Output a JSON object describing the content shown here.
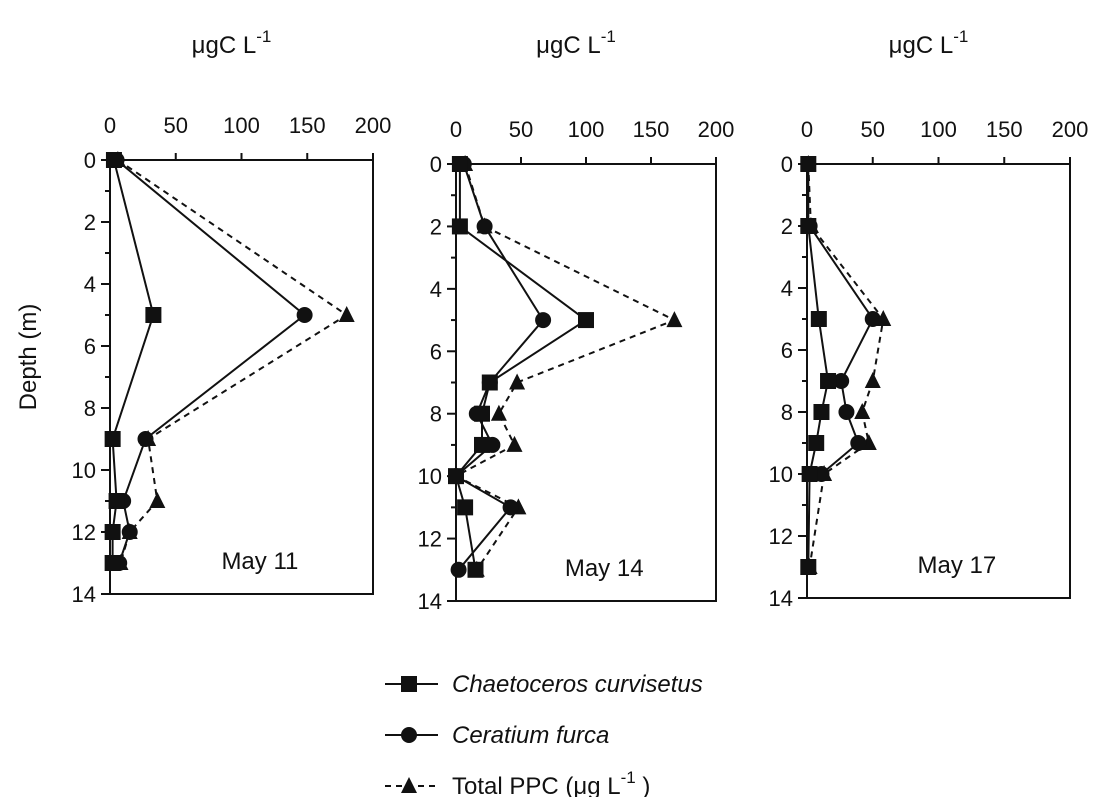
{
  "chart_data": [
    {
      "type": "line",
      "panel_label": "May 11",
      "x_axis_label": "μgC L",
      "x_axis_label_exponent": "-1",
      "ylabel": "Depth (m)",
      "xlim": [
        0,
        200
      ],
      "ylim": [
        14,
        0
      ],
      "x_ticks": [
        0,
        50,
        100,
        150,
        200
      ],
      "y_ticks": [
        0,
        2,
        4,
        6,
        8,
        10,
        12,
        14
      ],
      "x_axis_position": "top",
      "y_axis_inverted": true,
      "grid": false,
      "series": [
        {
          "name": "Chaetoceros curvisetus",
          "marker": "square",
          "line": "solid",
          "points": [
            {
              "x": 3,
              "y": 0
            },
            {
              "x": 33,
              "y": 5
            },
            {
              "x": 2,
              "y": 9
            },
            {
              "x": 5,
              "y": 11
            },
            {
              "x": 2,
              "y": 12
            },
            {
              "x": 2,
              "y": 13
            }
          ]
        },
        {
          "name": "Ceratium furca",
          "marker": "circle",
          "line": "solid",
          "points": [
            {
              "x": 5,
              "y": 0
            },
            {
              "x": 148,
              "y": 5
            },
            {
              "x": 27,
              "y": 9
            },
            {
              "x": 10,
              "y": 11
            },
            {
              "x": 15,
              "y": 12
            },
            {
              "x": 7,
              "y": 13
            }
          ]
        },
        {
          "name": "Total PPC (μg L",
          "marker": "triangle",
          "line": "dashed",
          "points": [
            {
              "x": 6,
              "y": 0
            },
            {
              "x": 180,
              "y": 5
            },
            {
              "x": 29,
              "y": 9
            },
            {
              "x": 36,
              "y": 11
            },
            {
              "x": 15,
              "y": 12
            },
            {
              "x": 8,
              "y": 13
            }
          ]
        }
      ]
    },
    {
      "type": "line",
      "panel_label": "May 14",
      "x_axis_label": "μgC L",
      "x_axis_label_exponent": "-1",
      "ylabel": "",
      "xlim": [
        0,
        200
      ],
      "ylim": [
        14,
        0
      ],
      "x_ticks": [
        0,
        50,
        100,
        150,
        200
      ],
      "y_ticks": [
        0,
        2,
        4,
        6,
        8,
        10,
        12,
        14
      ],
      "x_axis_position": "top",
      "y_axis_inverted": true,
      "grid": false,
      "series": [
        {
          "name": "Chaetoceros curvisetus",
          "marker": "square",
          "line": "solid",
          "points": [
            {
              "x": 3,
              "y": 0
            },
            {
              "x": 3,
              "y": 2
            },
            {
              "x": 100,
              "y": 5
            },
            {
              "x": 26,
              "y": 7
            },
            {
              "x": 20,
              "y": 8
            },
            {
              "x": 20,
              "y": 9
            },
            {
              "x": 0,
              "y": 10
            },
            {
              "x": 7,
              "y": 11
            },
            {
              "x": 15,
              "y": 13
            }
          ]
        },
        {
          "name": "Ceratium furca",
          "marker": "circle",
          "line": "solid",
          "points": [
            {
              "x": 6,
              "y": 0
            },
            {
              "x": 22,
              "y": 2
            },
            {
              "x": 67,
              "y": 5
            },
            {
              "x": 26,
              "y": 7
            },
            {
              "x": 16,
              "y": 8
            },
            {
              "x": 28,
              "y": 9
            },
            {
              "x": 0,
              "y": 10
            },
            {
              "x": 42,
              "y": 11
            },
            {
              "x": 2,
              "y": 13
            }
          ]
        },
        {
          "name": "Total PPC (μg L",
          "marker": "triangle",
          "line": "dashed",
          "points": [
            {
              "x": 7,
              "y": 0
            },
            {
              "x": 22,
              "y": 2
            },
            {
              "x": 168,
              "y": 5
            },
            {
              "x": 47,
              "y": 7
            },
            {
              "x": 33,
              "y": 8
            },
            {
              "x": 45,
              "y": 9
            },
            {
              "x": 0,
              "y": 10
            },
            {
              "x": 48,
              "y": 11
            },
            {
              "x": 16,
              "y": 13
            }
          ]
        }
      ]
    },
    {
      "type": "line",
      "panel_label": "May 17",
      "x_axis_label": "μgC L",
      "x_axis_label_exponent": "-1",
      "ylabel": "",
      "xlim": [
        0,
        200
      ],
      "ylim": [
        14,
        0
      ],
      "x_ticks": [
        0,
        50,
        100,
        150,
        200
      ],
      "y_ticks": [
        0,
        2,
        4,
        6,
        8,
        10,
        12,
        14
      ],
      "x_axis_position": "top",
      "y_axis_inverted": true,
      "grid": false,
      "series": [
        {
          "name": "Chaetoceros curvisetus",
          "marker": "square",
          "line": "solid",
          "points": [
            {
              "x": 1,
              "y": 0
            },
            {
              "x": 1,
              "y": 2
            },
            {
              "x": 9,
              "y": 5
            },
            {
              "x": 16,
              "y": 7
            },
            {
              "x": 11,
              "y": 8
            },
            {
              "x": 7,
              "y": 9
            },
            {
              "x": 2,
              "y": 10
            },
            {
              "x": 1,
              "y": 13
            }
          ]
        },
        {
          "name": "Ceratium furca",
          "marker": "circle",
          "line": "solid",
          "points": [
            {
              "x": 2,
              "y": 2
            },
            {
              "x": 50,
              "y": 5
            },
            {
              "x": 26,
              "y": 7
            },
            {
              "x": 30,
              "y": 8
            },
            {
              "x": 39,
              "y": 9
            },
            {
              "x": 11,
              "y": 10
            }
          ]
        },
        {
          "name": "Total PPC (μg L",
          "marker": "triangle",
          "line": "dashed",
          "points": [
            {
              "x": 1,
              "y": 0
            },
            {
              "x": 3,
              "y": 2
            },
            {
              "x": 58,
              "y": 5
            },
            {
              "x": 50,
              "y": 7
            },
            {
              "x": 42,
              "y": 8
            },
            {
              "x": 47,
              "y": 9
            },
            {
              "x": 13,
              "y": 10
            },
            {
              "x": 2,
              "y": 13
            }
          ]
        }
      ]
    }
  ],
  "legend": {
    "items": [
      {
        "label": "Chaetoceros curvisetus",
        "italic": true,
        "marker": "square",
        "line": "solid"
      },
      {
        "label": "Ceratium furca",
        "italic": true,
        "marker": "circle",
        "line": "solid"
      },
      {
        "label": "Total PPC (μg L",
        "exponent": "-1",
        "label_tail": " )",
        "italic": false,
        "marker": "triangle",
        "line": "dashed"
      }
    ]
  },
  "colors": {
    "ink": "#111111",
    "background": "#ffffff"
  }
}
